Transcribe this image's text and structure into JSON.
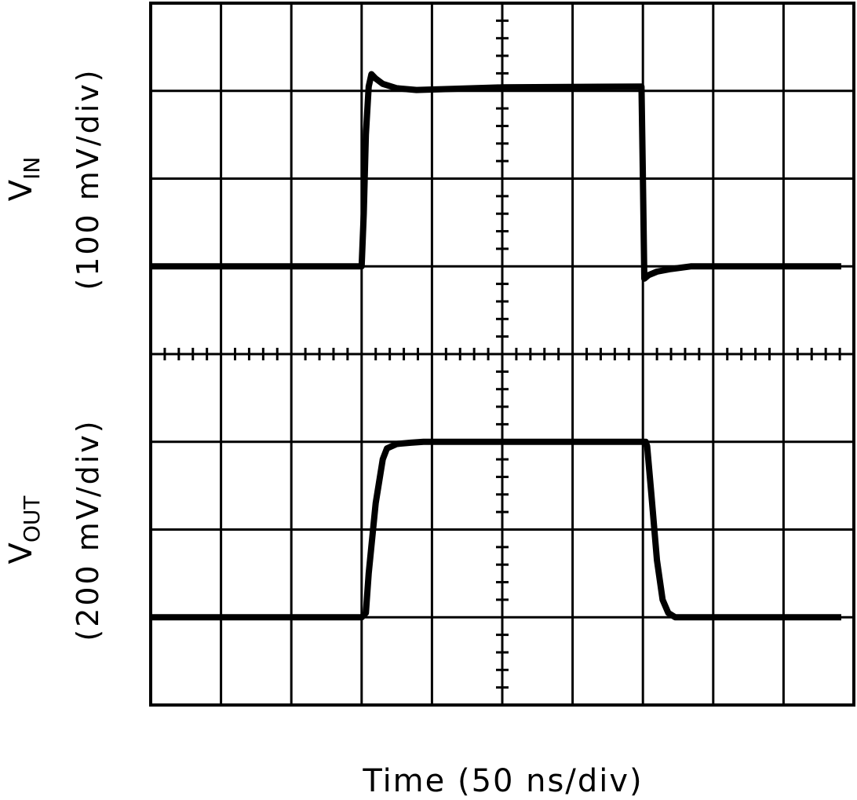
{
  "chart_data": {
    "type": "line",
    "title": "",
    "xlabel": "Time (50 ns/div)",
    "xlim": [
      0,
      500
    ],
    "x_unit": "ns",
    "grid": true,
    "divisions": {
      "x": 10,
      "y": 8
    },
    "trace_color": "#000000",
    "panels": [
      {
        "ylabel_main": "V",
        "ylabel_sub": "IN",
        "ylabel_scale": "(100 mV/div)",
        "y_unit": "mV",
        "series": [
          {
            "x": [
              0,
              150,
              151.5,
              153,
              155,
              157,
              160,
              165,
              175,
              189,
              250,
              349,
              350,
              351,
              354,
              360,
              370,
              384,
              440,
              491
            ],
            "y": [
              0,
              0,
              60,
              150,
              205,
              219,
              214,
              208,
              203,
              201,
              204,
              205,
              100,
              -14,
              -10,
              -6,
              -3,
              0,
              0,
              0
            ]
          }
        ]
      },
      {
        "ylabel_main": "V",
        "ylabel_sub": "OUT",
        "ylabel_scale": "(200 mV/div)",
        "y_unit": "mV",
        "series": [
          {
            "x": [
              0,
              150,
              153,
              155,
              160,
              165,
              168,
              175,
              185,
              194,
              300,
              352,
              353,
              356,
              360,
              364,
              368,
              373,
              420,
              491
            ],
            "y": [
              0,
              0,
              10,
              100,
              260,
              360,
              385,
              395,
              398,
              400,
              400,
              400,
              390,
              280,
              130,
              40,
              10,
              0,
              0,
              0
            ]
          }
        ]
      }
    ]
  }
}
